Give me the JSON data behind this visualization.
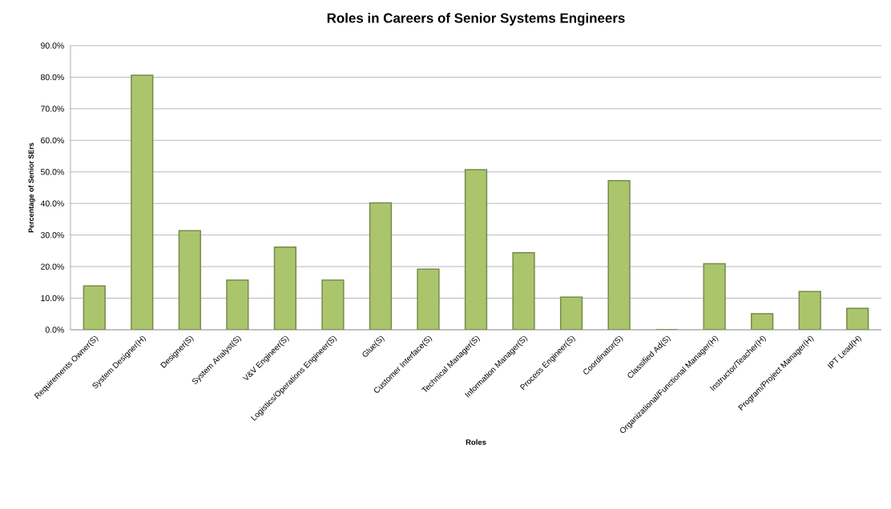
{
  "chart_data": {
    "type": "bar",
    "title": "Roles in Careers of Senior Systems Engineers",
    "xlabel": "Roles",
    "ylabel": "Percentage of Senior SErs",
    "categories": [
      "Requirements Owner(S)",
      "System Designer(H)",
      "Designer(S)",
      "System Analyst(S)",
      "V&V Engineer(S)",
      "Logistics/Operations Engineer(S)",
      "Glue(S)",
      "Customer Interface(S)",
      "Technical Manager(S)",
      "Information Manager(S)",
      "Process Engineer(S)",
      "Coordinator(S)",
      "Classified Ad(S)",
      "Organizational/Functional Manager(H)",
      "Instructor/Teacher(H)",
      "Program/Project Manager(H)",
      "IPT Lead(H)"
    ],
    "values": [
      13.9,
      80.6,
      31.4,
      15.7,
      26.2,
      15.7,
      40.2,
      19.2,
      50.7,
      24.4,
      10.3,
      47.2,
      0,
      20.9,
      5.1,
      12.1,
      6.8
    ],
    "color": "#abc56c",
    "ylim": [
      0,
      90
    ],
    "yticks": [
      {
        "value": 0,
        "label": "0.0%"
      },
      {
        "value": 10,
        "label": "10.0%"
      },
      {
        "value": 20,
        "label": "20.0%"
      },
      {
        "value": 30,
        "label": "30.0%"
      },
      {
        "value": 40,
        "label": "40.0%"
      },
      {
        "value": 50,
        "label": "50.0%"
      },
      {
        "value": 60,
        "label": "60.0%"
      },
      {
        "value": 70,
        "label": "70.0%"
      },
      {
        "value": 80,
        "label": "80.0%"
      },
      {
        "value": 90,
        "label": "90.0%"
      }
    ],
    "grid": "y"
  }
}
